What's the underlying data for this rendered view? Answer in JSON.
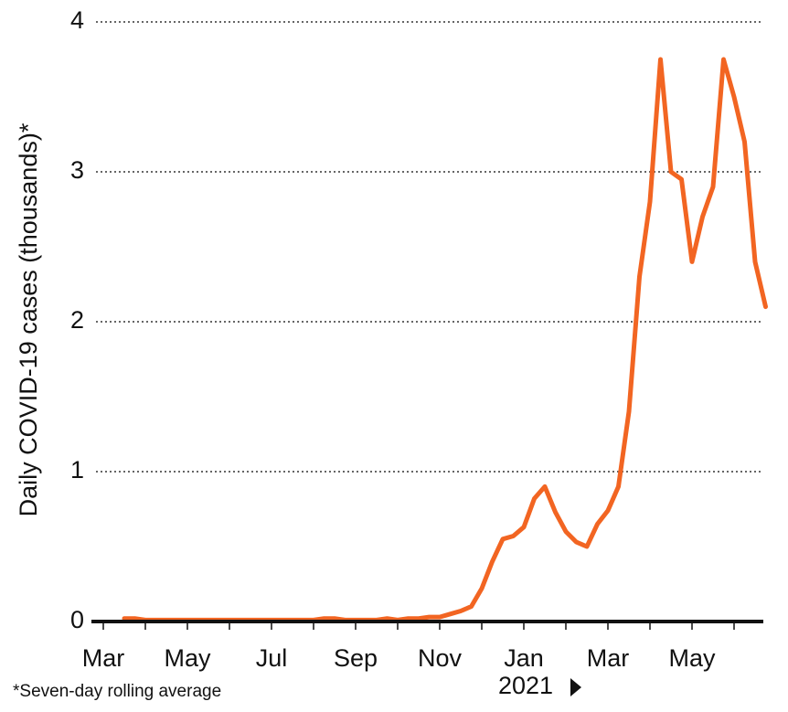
{
  "chart_data": {
    "type": "line",
    "y_label": "Daily COVID-19 cases (thousands)*",
    "footnote": "*Seven-day rolling average",
    "annotation": "2021",
    "categories": [
      "Mar",
      null,
      null,
      null,
      null,
      null,
      null,
      null,
      "May",
      null,
      null,
      null,
      null,
      null,
      null,
      null,
      "Jul",
      null,
      null,
      null,
      null,
      null,
      null,
      null,
      "Sep",
      null,
      null,
      null,
      null,
      null,
      null,
      null,
      "Nov",
      null,
      null,
      null,
      null,
      null,
      null,
      null,
      "Jan",
      null,
      null,
      null,
      null,
      null,
      null,
      null,
      "Mar",
      null,
      null,
      null,
      null,
      null,
      null,
      null,
      "May",
      null,
      null,
      null,
      null,
      null,
      null,
      null
    ],
    "series": [
      {
        "name": "Daily cases",
        "color": "#f26522",
        "values": [
          null,
          null,
          0.02,
          0.02,
          0.01,
          0.01,
          0.01,
          0.01,
          0.01,
          0.01,
          0.01,
          0.01,
          0.01,
          0.01,
          0.01,
          0.01,
          0.01,
          0.01,
          0.01,
          0.01,
          0.01,
          0.02,
          0.02,
          0.01,
          0.01,
          0.01,
          0.01,
          0.02,
          0.01,
          0.02,
          0.02,
          0.03,
          0.03,
          0.05,
          0.07,
          0.1,
          0.22,
          0.4,
          0.55,
          0.57,
          0.63,
          0.82,
          0.9,
          0.73,
          0.6,
          0.53,
          0.5,
          0.65,
          0.74,
          0.9,
          1.4,
          2.3,
          2.8,
          3.75,
          3.0,
          2.95,
          2.4,
          2.7,
          2.9,
          3.75,
          3.5,
          3.2,
          2.4,
          2.1
        ]
      }
    ],
    "ylim": [
      0,
      4
    ],
    "yticks": [
      0,
      1,
      2,
      3,
      4
    ],
    "grid": true
  }
}
